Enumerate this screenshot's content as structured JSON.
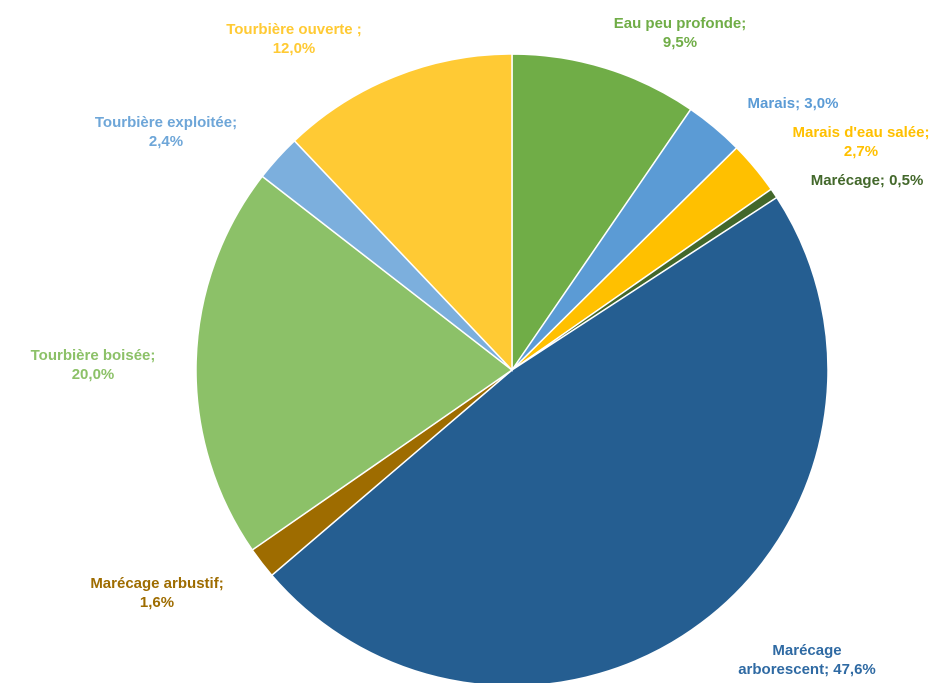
{
  "chart_data": {
    "type": "pie",
    "start_angle_deg": 0,
    "direction": "clockwise",
    "slices": [
      {
        "name": "Eau peu profonde",
        "value": 9.5,
        "label_lines": [
          "Eau peu profonde;",
          "9,5%"
        ],
        "color": "#70ad47"
      },
      {
        "name": "Marais",
        "value": 3.0,
        "label_lines": [
          "Marais; 3,0%"
        ],
        "color": "#5b9bd5"
      },
      {
        "name": "Marais d'eau salée",
        "value": 2.7,
        "label_lines": [
          "Marais d'eau salée;",
          "2,7%"
        ],
        "color": "#ffc000"
      },
      {
        "name": "Marécage",
        "value": 0.5,
        "label_lines": [
          "Marécage; 0,5%"
        ],
        "color": "#43682b"
      },
      {
        "name": "Marécage arborescent",
        "value": 47.6,
        "label_lines": [
          "Marécage",
          "arborescent; 47,6%"
        ],
        "color": "#255e91"
      },
      {
        "name": "Marécage arbustif",
        "value": 1.6,
        "label_lines": [
          "Marécage arbustif;",
          "1,6%"
        ],
        "color": "#9e6c00"
      },
      {
        "name": "Tourbière boisée",
        "value": 20.0,
        "label_lines": [
          "Tourbière boisée;",
          "20,0%"
        ],
        "color": "#8cc168"
      },
      {
        "name": "Tourbière exploitée",
        "value": 2.4,
        "label_lines": [
          "Tourbière exploitée;",
          "2,4%"
        ],
        "color": "#7cafdd"
      },
      {
        "name": "Tourbière ouverte",
        "value": 12.0,
        "label_lines": [
          "Tourbière ouverte ;",
          "12,0%"
        ],
        "color": "#ffca34"
      }
    ],
    "label_color_overrides": {
      "Marécage arborescent": "#2f6aa3",
      "Tourbière exploitée": "#6ea6d8"
    }
  }
}
